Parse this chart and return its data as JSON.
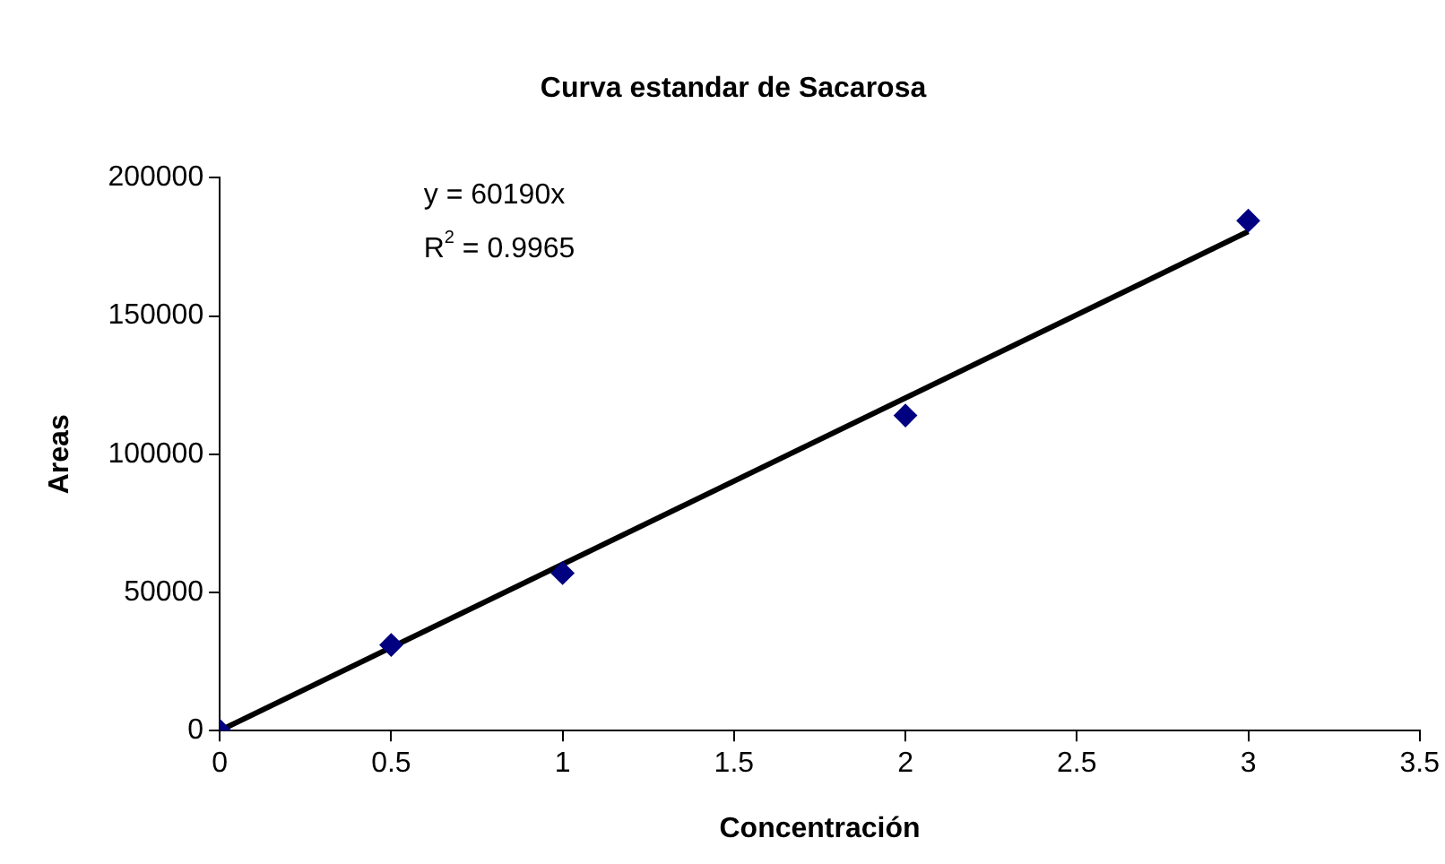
{
  "chart_data": {
    "type": "scatter",
    "title": "Curva estandar de Sacarosa",
    "xlabel": "Concentración",
    "ylabel": "Areas",
    "xlim": [
      0,
      3.5
    ],
    "xticks": [
      0,
      0.5,
      1,
      1.5,
      2,
      2.5,
      3,
      3.5
    ],
    "ylim": [
      0,
      200000
    ],
    "yticks": [
      0,
      50000,
      100000,
      150000,
      200000
    ],
    "grid": false,
    "legend": false,
    "marker": "diamond",
    "annotations": [
      "y = 60190x",
      "R$^{2}$ = 0.9965"
    ],
    "series": [
      {
        "color": "#000080",
        "x": [
          0,
          0.5,
          1,
          2,
          3
        ],
        "values": [
          0,
          31000,
          57000,
          114000,
          184500
        ]
      },
      {
        "type": "line",
        "color": "#000000",
        "x": [
          0,
          3
        ],
        "values": [
          0,
          180570
        ],
        "marker": "none"
      }
    ]
  }
}
